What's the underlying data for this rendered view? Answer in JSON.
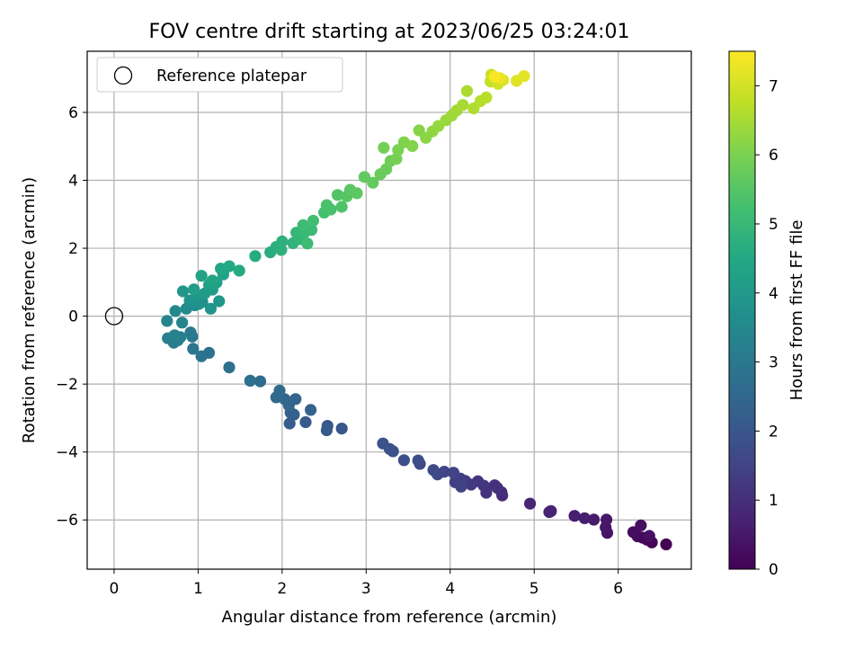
{
  "chart_data": {
    "type": "scatter",
    "title": "FOV centre drift starting at 2023/06/25 03:24:01",
    "xlabel": "Angular distance from reference (arcmin)",
    "ylabel": "Rotation from reference (arcmin)",
    "xlim": [
      -0.32,
      6.87
    ],
    "ylim": [
      -7.45,
      7.8
    ],
    "xticks": [
      0,
      1,
      2,
      3,
      4,
      5,
      6
    ],
    "yticks": [
      -6,
      -4,
      -2,
      0,
      2,
      4,
      6
    ],
    "xtick_labels": [
      "0",
      "1",
      "2",
      "3",
      "4",
      "5",
      "6"
    ],
    "ytick_labels": [
      "−6",
      "−4",
      "−2",
      "0",
      "2",
      "4",
      "6"
    ],
    "grid": true,
    "legend": {
      "entries": [
        "Reference platepar"
      ],
      "placement": "upper-left"
    },
    "reference_point": {
      "x": 0,
      "y": 0,
      "label": "Reference platepar"
    },
    "colorbar": {
      "label": "Hours from first FF file",
      "range": [
        0,
        7.5
      ],
      "ticks": [
        0,
        1,
        2,
        3,
        4,
        5,
        6,
        7
      ],
      "tick_labels": [
        "0",
        "1",
        "2",
        "3",
        "4",
        "5",
        "6",
        "7"
      ],
      "colormap": "viridis"
    },
    "points": [
      [
        6.57,
        -6.72,
        0.0
      ],
      [
        6.4,
        -6.66,
        0.05
      ],
      [
        6.34,
        -6.58,
        0.1
      ],
      [
        6.29,
        -6.52,
        0.15
      ],
      [
        6.23,
        -6.48,
        0.2
      ],
      [
        6.18,
        -6.36,
        0.25
      ],
      [
        6.27,
        -6.16,
        0.3
      ],
      [
        6.37,
        -6.47,
        0.35
      ],
      [
        5.87,
        -6.38,
        0.4
      ],
      [
        5.85,
        -6.22,
        0.45
      ],
      [
        5.86,
        -5.99,
        0.5
      ],
      [
        5.71,
        -5.99,
        0.55
      ],
      [
        5.6,
        -5.95,
        0.6
      ],
      [
        5.48,
        -5.88,
        0.65
      ],
      [
        5.2,
        -5.74,
        0.7
      ],
      [
        5.18,
        -5.77,
        0.75
      ],
      [
        4.95,
        -5.52,
        0.8
      ],
      [
        4.62,
        -5.28,
        0.9
      ],
      [
        4.61,
        -5.18,
        0.95
      ],
      [
        4.56,
        -5.05,
        1.0
      ],
      [
        4.53,
        -4.98,
        1.05
      ],
      [
        4.43,
        -5.2,
        1.1
      ],
      [
        4.4,
        -4.99,
        1.15
      ],
      [
        4.33,
        -4.86,
        1.2
      ],
      [
        4.25,
        -4.96,
        1.25
      ],
      [
        4.18,
        -4.85,
        1.3
      ],
      [
        4.12,
        -4.78,
        1.35
      ],
      [
        4.06,
        -4.89,
        1.4
      ],
      [
        4.13,
        -5.02,
        1.45
      ],
      [
        4.04,
        -4.61,
        1.5
      ],
      [
        3.93,
        -4.58,
        1.55
      ],
      [
        3.85,
        -4.66,
        1.6
      ],
      [
        3.8,
        -4.53,
        1.65
      ],
      [
        3.64,
        -4.35,
        1.7
      ],
      [
        3.62,
        -4.25,
        1.75
      ],
      [
        3.45,
        -4.24,
        1.8
      ],
      [
        3.32,
        -3.98,
        1.85
      ],
      [
        3.28,
        -3.91,
        1.9
      ],
      [
        3.2,
        -3.75,
        1.95
      ],
      [
        2.71,
        -3.31,
        2.0
      ],
      [
        2.54,
        -3.23,
        2.05
      ],
      [
        2.53,
        -3.36,
        2.1
      ],
      [
        2.28,
        -3.12,
        2.15
      ],
      [
        2.09,
        -3.16,
        2.2
      ],
      [
        2.14,
        -2.9,
        2.25
      ],
      [
        2.1,
        -2.84,
        2.3
      ],
      [
        2.34,
        -2.76,
        2.35
      ],
      [
        2.16,
        -2.44,
        2.4
      ],
      [
        2.08,
        -2.63,
        2.45
      ],
      [
        2.03,
        -2.44,
        2.5
      ],
      [
        1.93,
        -2.39,
        2.55
      ],
      [
        1.97,
        -2.19,
        2.6
      ],
      [
        1.74,
        -1.92,
        2.65
      ],
      [
        1.62,
        -1.9,
        2.7
      ],
      [
        1.37,
        -1.51,
        2.75
      ],
      [
        1.13,
        -1.08,
        2.8
      ],
      [
        1.04,
        -1.18,
        2.85
      ],
      [
        0.94,
        -0.96,
        2.9
      ],
      [
        0.93,
        -0.6,
        3.0
      ],
      [
        0.91,
        -0.48,
        3.05
      ],
      [
        0.71,
        -0.78,
        3.1
      ],
      [
        0.76,
        -0.71,
        3.15
      ],
      [
        0.64,
        -0.65,
        3.2
      ],
      [
        0.79,
        -0.62,
        3.25
      ],
      [
        0.72,
        -0.56,
        3.3
      ],
      [
        0.81,
        -0.19,
        3.35
      ],
      [
        0.63,
        -0.14,
        3.4
      ],
      [
        0.73,
        0.15,
        3.5
      ],
      [
        0.86,
        0.22,
        3.55
      ],
      [
        0.96,
        0.32,
        3.6
      ],
      [
        1.05,
        0.42,
        3.7
      ],
      [
        1.01,
        0.36,
        3.75
      ],
      [
        0.9,
        0.46,
        3.8
      ],
      [
        1.15,
        0.22,
        3.85
      ],
      [
        1.25,
        0.44,
        3.9
      ],
      [
        0.82,
        0.73,
        3.95
      ],
      [
        0.99,
        0.62,
        4.0
      ],
      [
        1.08,
        0.67,
        4.05
      ],
      [
        1.17,
        0.78,
        4.1
      ],
      [
        0.95,
        0.79,
        4.15
      ],
      [
        1.13,
        0.92,
        4.2
      ],
      [
        1.22,
        0.99,
        4.25
      ],
      [
        1.04,
        1.19,
        4.3
      ],
      [
        1.3,
        1.23,
        4.35
      ],
      [
        1.17,
        1.05,
        4.4
      ],
      [
        1.27,
        1.4,
        4.45
      ],
      [
        1.37,
        1.47,
        4.5
      ],
      [
        1.49,
        1.34,
        4.55
      ],
      [
        1.68,
        1.77,
        4.6
      ],
      [
        1.86,
        1.88,
        4.65
      ],
      [
        1.93,
        2.04,
        4.7
      ],
      [
        2.0,
        2.2,
        4.75
      ],
      [
        1.99,
        1.95,
        4.8
      ],
      [
        2.13,
        2.15,
        4.85
      ],
      [
        2.21,
        2.27,
        4.9
      ],
      [
        2.17,
        2.46,
        4.95
      ],
      [
        2.26,
        2.44,
        5.0
      ],
      [
        2.35,
        2.54,
        5.05
      ],
      [
        2.3,
        2.14,
        5.1
      ],
      [
        2.25,
        2.68,
        5.15
      ],
      [
        2.37,
        2.81,
        5.2
      ],
      [
        2.5,
        3.05,
        5.25
      ],
      [
        2.58,
        3.14,
        5.3
      ],
      [
        2.53,
        3.27,
        5.35
      ],
      [
        2.71,
        3.22,
        5.4
      ],
      [
        2.66,
        3.57,
        5.45
      ],
      [
        2.77,
        3.53,
        5.5
      ],
      [
        2.81,
        3.72,
        5.55
      ],
      [
        2.89,
        3.62,
        5.6
      ],
      [
        2.98,
        4.1,
        5.65
      ],
      [
        3.08,
        3.93,
        5.7
      ],
      [
        3.17,
        4.18,
        5.75
      ],
      [
        3.24,
        4.33,
        5.8
      ],
      [
        3.29,
        4.57,
        5.85
      ],
      [
        3.21,
        4.96,
        5.9
      ],
      [
        3.36,
        4.63,
        5.95
      ],
      [
        3.38,
        4.89,
        6.0
      ],
      [
        3.45,
        5.12,
        6.05
      ],
      [
        3.55,
        5.01,
        6.1
      ],
      [
        3.63,
        5.47,
        6.15
      ],
      [
        3.71,
        5.25,
        6.2
      ],
      [
        3.79,
        5.44,
        6.25
      ],
      [
        3.86,
        5.6,
        6.3
      ],
      [
        3.95,
        5.77,
        6.35
      ],
      [
        4.02,
        5.91,
        6.4
      ],
      [
        4.08,
        6.06,
        6.45
      ],
      [
        4.15,
        6.22,
        6.5
      ],
      [
        4.2,
        6.63,
        6.55
      ],
      [
        4.28,
        6.12,
        6.6
      ],
      [
        4.36,
        6.33,
        6.65
      ],
      [
        4.43,
        6.44,
        6.7
      ],
      [
        4.48,
        6.91,
        6.8
      ],
      [
        4.49,
        7.11,
        6.9
      ],
      [
        4.57,
        6.84,
        7.0
      ],
      [
        4.63,
        6.95,
        7.1
      ],
      [
        4.79,
        6.93,
        7.15
      ],
      [
        4.88,
        7.07,
        7.2
      ],
      [
        4.59,
        7.01,
        7.3
      ],
      [
        4.53,
        7.05,
        7.45
      ]
    ]
  }
}
